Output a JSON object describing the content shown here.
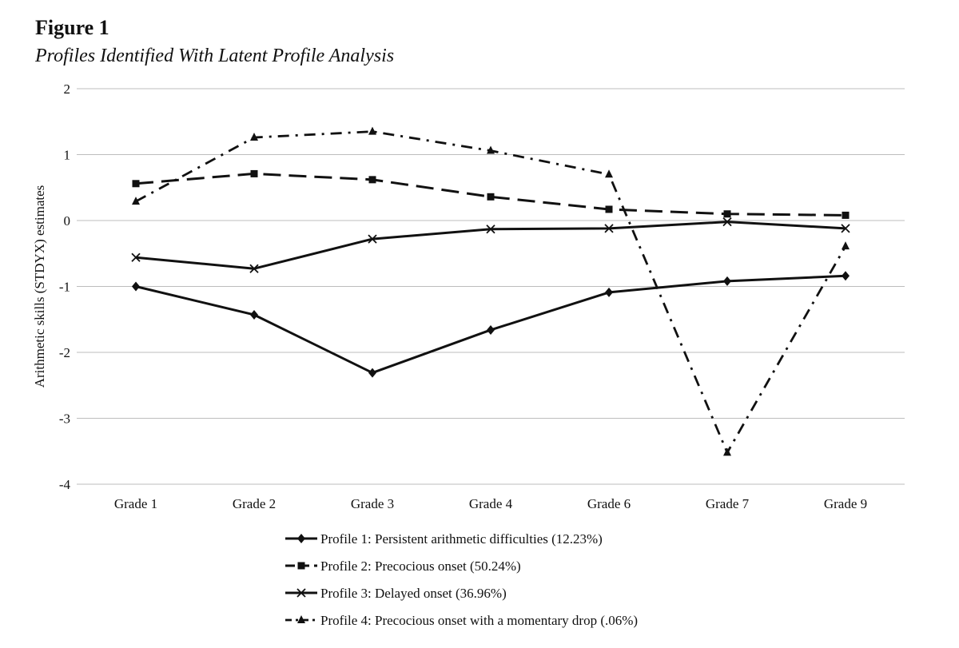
{
  "figure": {
    "label": "Figure 1",
    "title": "Profiles Identified With Latent Profile Analysis"
  },
  "chart_data": {
    "type": "line",
    "title": "Profiles Identified With Latent Profile Analysis",
    "xlabel": "",
    "ylabel": "Arithmetic skills (STDYX) estimates",
    "ylim": [
      -4,
      2
    ],
    "yticks": [
      2,
      1,
      0,
      -1,
      -2,
      -3,
      -4
    ],
    "categories": [
      "Grade 1",
      "Grade 2",
      "Grade 3",
      "Grade 4",
      "Grade 6",
      "Grade 7",
      "Grade 9"
    ],
    "grid": true,
    "legend_position": "bottom",
    "series": [
      {
        "name": "Profile 1: Persistent arithmetic difficulties (12.23%)",
        "marker": "diamond",
        "dash": "solid",
        "values": [
          -1.0,
          -1.43,
          -2.31,
          -1.66,
          -1.09,
          -0.92,
          -0.84
        ]
      },
      {
        "name": "Profile 2: Precocious onset (50.24%)",
        "marker": "square",
        "dash": "long-dash",
        "values": [
          0.56,
          0.71,
          0.62,
          0.36,
          0.17,
          0.1,
          0.08
        ]
      },
      {
        "name": "Profile 3: Delayed onset (36.96%)",
        "marker": "x",
        "dash": "solid",
        "values": [
          -0.56,
          -0.73,
          -0.28,
          -0.13,
          -0.12,
          -0.02,
          -0.12
        ]
      },
      {
        "name": "Profile 4: Precocious onset with a momentary drop (.06%)",
        "marker": "triangle",
        "dash": "dash-dot",
        "values": [
          0.29,
          1.26,
          1.35,
          1.06,
          0.7,
          -3.52,
          -0.39
        ]
      }
    ]
  }
}
